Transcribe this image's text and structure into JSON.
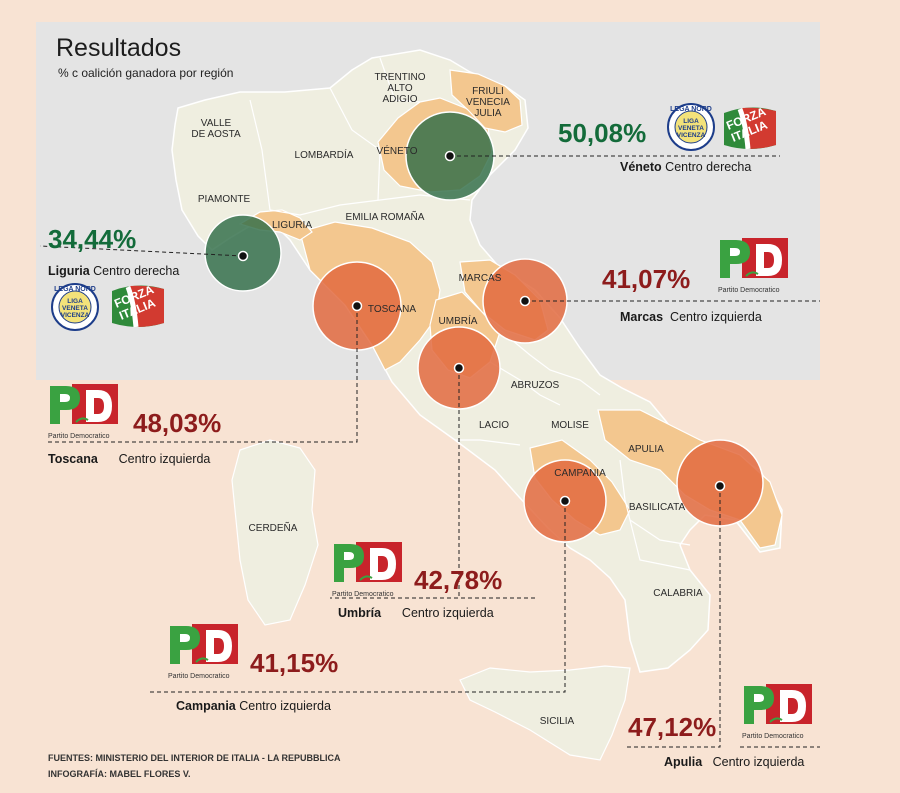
{
  "header": {
    "title": "Resultados",
    "subtitle": "% c oalición ganadora por región"
  },
  "regions": [
    {
      "id": "valle",
      "label": "VALLE\nDE AOSTA"
    },
    {
      "id": "trentino",
      "label": "TRENTINO\nALTO\nADIGIO"
    },
    {
      "id": "friuli",
      "label": "FRIULI\nVENECIA\nJULIA"
    },
    {
      "id": "lombardia",
      "label": "LOMBARDÍA"
    },
    {
      "id": "veneto",
      "label": "VÉNETO"
    },
    {
      "id": "piamonte",
      "label": "PIAMONTE"
    },
    {
      "id": "emilia",
      "label": "EMILIA ROMAÑA"
    },
    {
      "id": "liguria",
      "label": "LIGURIA"
    },
    {
      "id": "marcas",
      "label": "MARCAS"
    },
    {
      "id": "toscana",
      "label": "TOSCANA"
    },
    {
      "id": "umbria",
      "label": "UMBRÍA"
    },
    {
      "id": "abruzos",
      "label": "ABRUZOS"
    },
    {
      "id": "lacio",
      "label": "LACIO"
    },
    {
      "id": "molise",
      "label": "MOLISE"
    },
    {
      "id": "apulia",
      "label": "APULIA"
    },
    {
      "id": "campania",
      "label": "CAMPANIA"
    },
    {
      "id": "basilicata",
      "label": "BASILICATA"
    },
    {
      "id": "cerdena",
      "label": "CERDEÑA"
    },
    {
      "id": "calabria",
      "label": "CALABRIA"
    },
    {
      "id": "sicilia",
      "label": "SICILIA"
    }
  ],
  "results": [
    {
      "region": "Véneto",
      "percent": "50,08%",
      "coalition": "Centro derecha",
      "party": "Liga Norte / Forza Italia",
      "color": "#136b3a"
    },
    {
      "region": "Liguria",
      "percent": "34,44%",
      "coalition": "Centro derecha",
      "party": "Liga Norte / Forza Italia",
      "color": "#136b3a"
    },
    {
      "region": "Marcas",
      "percent": "41,07%",
      "coalition": "Centro izquierda",
      "party": "Partito Democratico",
      "color": "#8d1c1c"
    },
    {
      "region": "Toscana",
      "percent": "48,03%",
      "coalition": "Centro izquierda",
      "party": "Partito Democratico",
      "color": "#8d1c1c"
    },
    {
      "region": "Umbría",
      "percent": "42,78%",
      "coalition": "Centro izquierda",
      "party": "Partito Democratico",
      "color": "#8d1c1c"
    },
    {
      "region": "Campania",
      "percent": "41,15%",
      "coalition": "Centro izquierda",
      "party": "Partito Democratico",
      "color": "#8d1c1c"
    },
    {
      "region": "Apulia",
      "percent": "47,12%",
      "coalition": "Centro izquierda",
      "party": "Partito Democratico",
      "color": "#8d1c1c"
    }
  ],
  "logos": {
    "pd_caption": "Partito Democratico",
    "pd_letters": "PD",
    "forza_text": "FORZA\nITALIA",
    "lega_top": "LEGA NORD",
    "lega_text": "LIGA\nVENETA\nVICENZA"
  },
  "colors": {
    "background": "#f8e3d3",
    "mapbox": "#e3e3e3",
    "land": "#efeee0",
    "centre_left_region": "#f3c78f",
    "centre_left_bubble": "#e26a3f",
    "centre_right_bubble": "#2f6d47",
    "centre_right_text": "#136b3a",
    "centre_left_text": "#8d1c1c"
  },
  "footer": {
    "sources": "FUENTES: MINISTERIO DEL INTERIOR DE ITALIA - LA REPUBBLICA",
    "credit": "INFOGRAFÍA: MABEL FLORES V."
  }
}
